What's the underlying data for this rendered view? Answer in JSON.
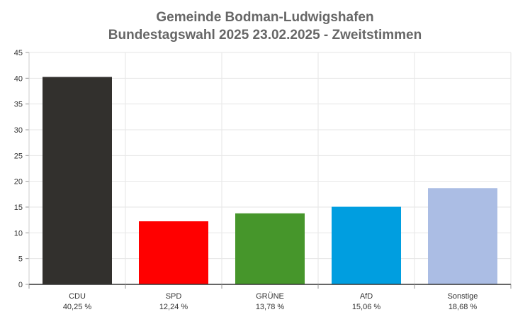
{
  "chart_data": {
    "type": "bar",
    "title": "Gemeinde Bodman-Ludwigshafen",
    "subtitle": "Bundestagswahl 2025 23.02.2025  - Zweitstimmen",
    "categories": [
      "CDU",
      "SPD",
      "GRÜNE",
      "AfD",
      "Sonstige"
    ],
    "values": [
      40.25,
      12.24,
      13.78,
      15.06,
      18.68
    ],
    "value_labels": [
      "40,25 %",
      "12,24 %",
      "13,78 %",
      "15,06 %",
      "18,68 %"
    ],
    "colors": [
      "#32302d",
      "#ff0000",
      "#46962b",
      "#009ee0",
      "#abbde4"
    ],
    "ylim": [
      0,
      45
    ],
    "yticks": [
      0,
      5,
      10,
      15,
      20,
      25,
      30,
      35,
      40,
      45
    ],
    "xlabel": "",
    "ylabel": "",
    "grid": true,
    "legend": "none"
  }
}
